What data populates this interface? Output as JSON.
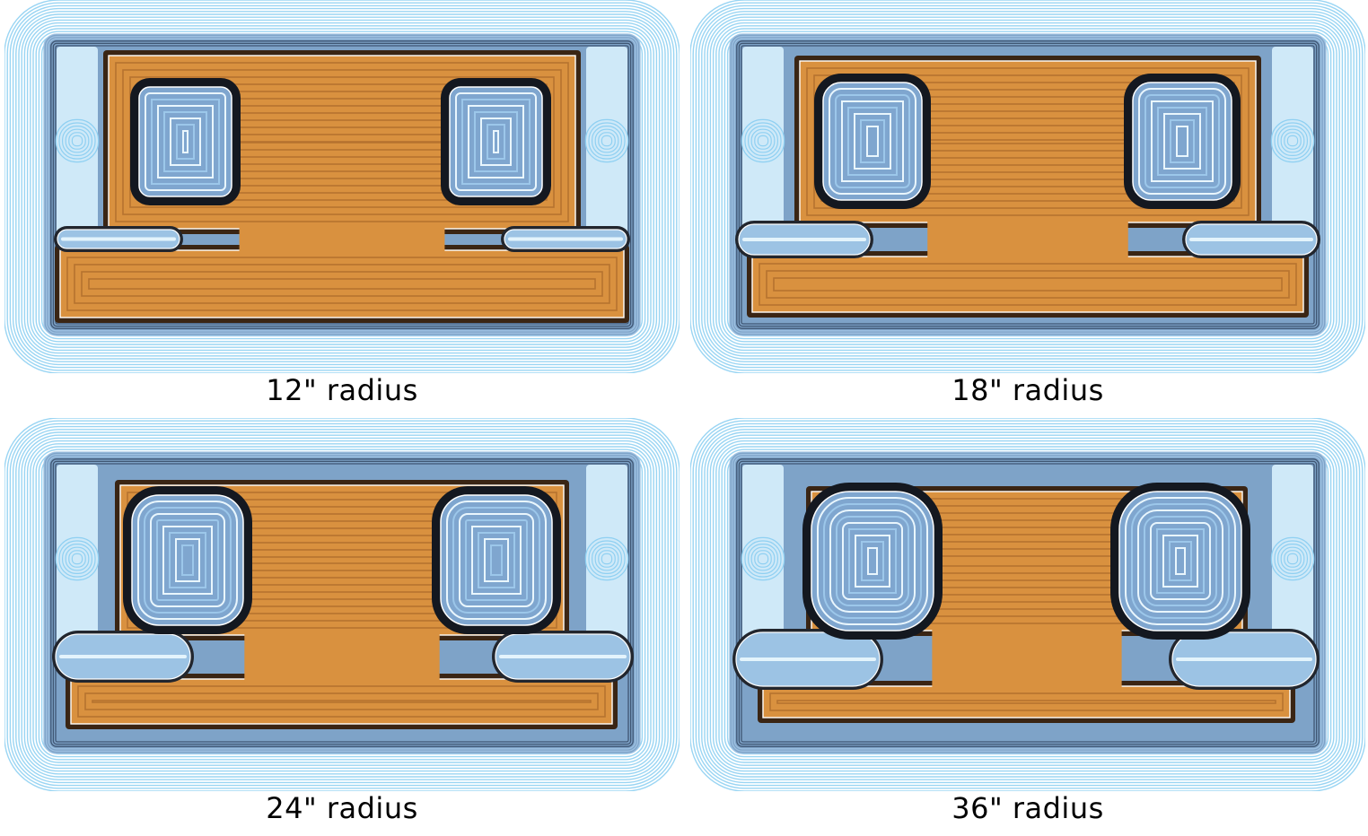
{
  "panels": [
    {
      "caption": "12\" radius",
      "radius_in": 12
    },
    {
      "caption": "18\" radius",
      "radius_in": 18
    },
    {
      "caption": "24\" radius",
      "radius_in": 24
    },
    {
      "caption": "36\" radius",
      "radius_in": 36
    }
  ],
  "colors": {
    "outside_light": "#aee0f6",
    "outside_line": "#8fd0f2",
    "wall_dark": "#1a1d24",
    "wall_blue": "#6f8fb4",
    "inside_fill": "#d9913f",
    "inside_line": "#a9692b",
    "inside_dark": "#3a2514"
  }
}
